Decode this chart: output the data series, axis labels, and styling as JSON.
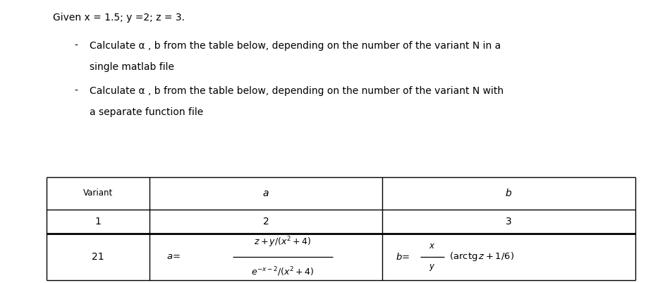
{
  "title_line": "Given x = 1.5; y =2; z = 3.",
  "bullet1_line1": "Calculate α , b from the table below, depending on the number of the variant N in a",
  "bullet1_line2": "single matlab file",
  "bullet2_line1": "Calculate α , b from the table below, depending on the number of the variant N with",
  "bullet2_line2": "a separate function file",
  "bg_color": "#ffffff",
  "text_color": "#000000",
  "col_splits": [
    0.07,
    0.225,
    0.575,
    0.955
  ],
  "row_splits": [
    0.375,
    0.26,
    0.175,
    0.01
  ],
  "fontsize_text": 10,
  "fontsize_table": 9.5,
  "fontsize_formula": 9
}
